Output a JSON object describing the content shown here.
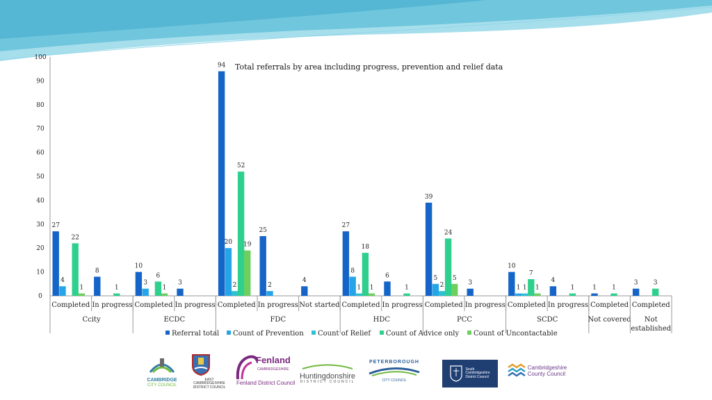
{
  "colors": {
    "referral": "#1565c8",
    "prevention": "#25a5e8",
    "relief": "#2fc0d4",
    "advice": "#2fd08e",
    "uncontactable": "#6ccf5e",
    "decor": "#5fc3dc"
  },
  "chart_data": {
    "type": "bar",
    "title": "Total referrals by area including progress, prevention and relief data",
    "ylim": [
      0,
      100
    ],
    "yticks": [
      "0",
      "10",
      "20",
      "30",
      "40",
      "50",
      "60",
      "70",
      "80",
      "90",
      "100"
    ],
    "grid": false,
    "legend_position": "bottom",
    "series_names": [
      "Referral total",
      "Count of Prevention",
      "Count of Relief",
      "Count of Advice only",
      "Count of Uncontactable"
    ],
    "categories": [
      {
        "area": "Ccity",
        "status": "Completed",
        "values": [
          27,
          4,
          0,
          22,
          1
        ]
      },
      {
        "area": "Ccity",
        "status": "In progress",
        "values": [
          8,
          0,
          0,
          1,
          0
        ]
      },
      {
        "area": "ECDC",
        "status": "Completed",
        "values": [
          10,
          3,
          0,
          6,
          1
        ]
      },
      {
        "area": "ECDC",
        "status": "In progress",
        "values": [
          3,
          0,
          0,
          0,
          0
        ]
      },
      {
        "area": "FDC",
        "status": "Completed",
        "values": [
          94,
          20,
          2,
          52,
          19
        ]
      },
      {
        "area": "FDC",
        "status": "In progress",
        "values": [
          25,
          2,
          0,
          0,
          0
        ]
      },
      {
        "area": "FDC",
        "status": "Not started",
        "values": [
          4,
          0,
          0,
          0,
          0
        ]
      },
      {
        "area": "HDC",
        "status": "Completed",
        "values": [
          27,
          8,
          1,
          18,
          1
        ]
      },
      {
        "area": "HDC",
        "status": "In progress",
        "values": [
          6,
          0,
          0,
          1,
          0
        ]
      },
      {
        "area": "PCC",
        "status": "Completed",
        "values": [
          39,
          5,
          2,
          24,
          5
        ]
      },
      {
        "area": "PCC",
        "status": "In progress",
        "values": [
          3,
          0,
          0,
          0,
          0
        ]
      },
      {
        "area": "SCDC",
        "status": "Completed",
        "values": [
          10,
          1,
          1,
          7,
          1
        ]
      },
      {
        "area": "SCDC",
        "status": "In progress",
        "values": [
          4,
          0,
          0,
          1,
          0
        ]
      },
      {
        "area": "Not covered",
        "status": "Completed",
        "values": [
          1,
          0,
          0,
          1,
          0
        ]
      },
      {
        "area": "Not established",
        "status": "Completed",
        "values": [
          3,
          0,
          0,
          3,
          0
        ]
      }
    ],
    "area_labels": [
      "Ccity",
      "ECDC",
      "FDC",
      "HDC",
      "PCC",
      "SCDC",
      "Not covered",
      "Not established"
    ]
  },
  "logos": {
    "cambridge": {
      "line1": "CAMBRIDGE",
      "line2": "CITY COUNCIL"
    },
    "east_cambs": {
      "line1": "EAST CAMBRIDGESHIRE",
      "line2": "DISTRICT COUNCIL"
    },
    "fenland": {
      "name": "Fenland",
      "sub": "CAMBRIDGESHIRE",
      "line": "Fenland District Council"
    },
    "huntingdonshire": {
      "name": "Huntingdonshire",
      "sub": "DISTRICT COUNCIL"
    },
    "peterborough": {
      "name": "PETERBOROUGH",
      "sub": "CITY COUNCIL"
    },
    "south_cambs": {
      "line1": "South",
      "line2": "Cambridgeshire",
      "line3": "District Council"
    },
    "cambs_county": {
      "line1": "Cambridgeshire",
      "line2": "County Council"
    }
  }
}
